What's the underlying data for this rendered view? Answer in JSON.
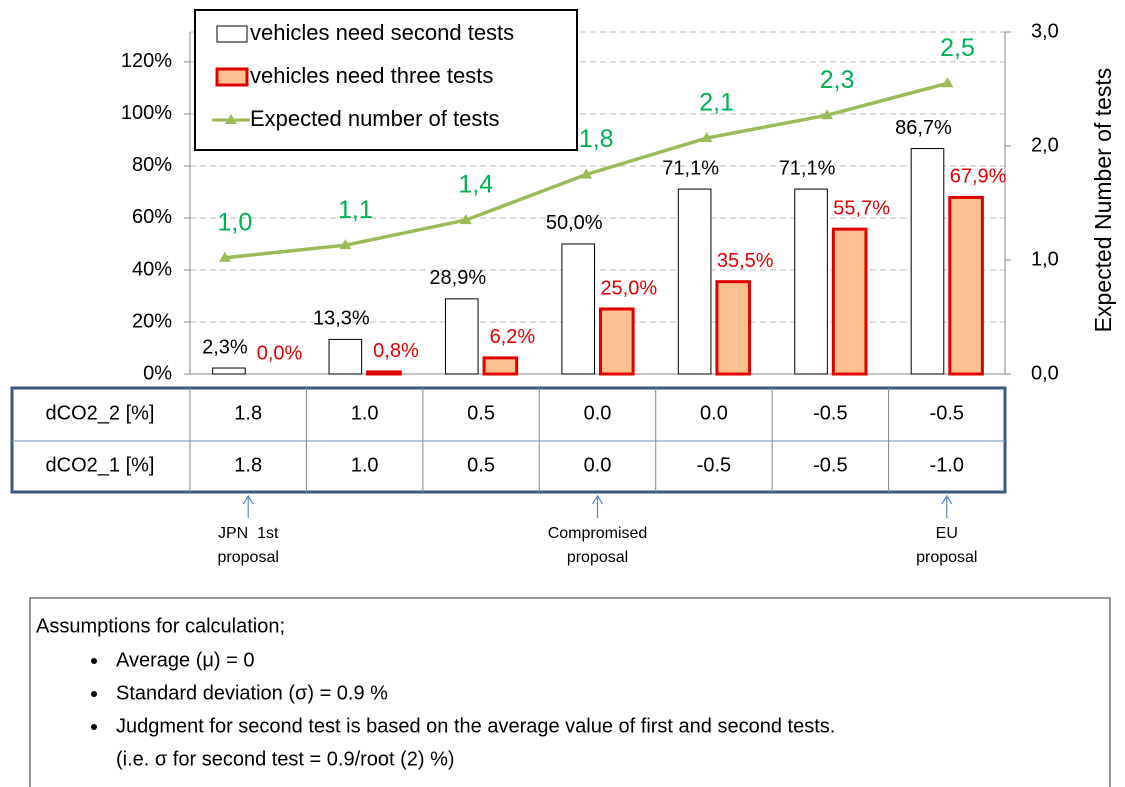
{
  "chart_data": {
    "type": "bar",
    "y_axis_label": "Expected Number of tests",
    "categories": [
      null,
      null,
      null,
      null,
      null,
      null,
      null
    ],
    "ylim": [
      0,
      131.5
    ],
    "yticks": [
      {
        "value": 0,
        "label": "0%"
      },
      {
        "value": 20,
        "label": "20%"
      },
      {
        "value": 40,
        "label": "40%"
      },
      {
        "value": 60,
        "label": "60%"
      },
      {
        "value": 80,
        "label": "80%"
      },
      {
        "value": 100,
        "label": "100%"
      },
      {
        "value": 120,
        "label": "120%"
      }
    ],
    "y2lim": [
      0,
      3
    ],
    "y2ticks": [
      {
        "value": 0,
        "label": "0,0"
      },
      {
        "value": 1,
        "label": "1,0"
      },
      {
        "value": 2,
        "label": "2,0"
      },
      {
        "value": 3,
        "label": "3,0"
      }
    ],
    "grid": true,
    "series": [
      {
        "name": "vehicles need second tests",
        "type": "bar",
        "color": "#ffffff",
        "edge": "#000000",
        "label_color": "#000000",
        "values": [
          2.3,
          13.3,
          28.9,
          50.0,
          71.1,
          71.1,
          86.7
        ],
        "value_labels": [
          "2,3%",
          "13,3%",
          "28,9%",
          "50,0%",
          "71,1%",
          "71,1%",
          "86,7%"
        ]
      },
      {
        "name": "vehicles need three tests",
        "type": "bar",
        "color": "#fac090",
        "edge": "#e00000",
        "label_color": "#e00000",
        "values": [
          0.0,
          0.8,
          6.2,
          25.0,
          35.5,
          55.7,
          67.9
        ],
        "value_labels": [
          "0,0%",
          "0,8%",
          "6,2%",
          "25,0%",
          "35,5%",
          "55,7%",
          "67,9%"
        ]
      },
      {
        "name": "Expected number of tests",
        "type": "line",
        "axis": "y2",
        "color": "#9bbb59",
        "label_color": "#00b050",
        "values": [
          1.02,
          1.13,
          1.35,
          1.75,
          2.07,
          2.27,
          2.55
        ],
        "value_labels": [
          "1,0",
          "1,1",
          "1,4",
          "1,8",
          "2,1",
          "2,3",
          "2,5"
        ]
      }
    ]
  },
  "table": {
    "rows": [
      [
        "dCO2_2 [%]",
        "1.8",
        "1.0",
        "0.5",
        "0.0",
        "0.0",
        "-0.5",
        "-0.5"
      ],
      [
        "dCO2_1 [%]",
        "1.8",
        "1.0",
        "0.5",
        "0.0",
        "-0.5",
        "-0.5",
        "-1.0"
      ]
    ]
  },
  "annotations": [
    {
      "column": 0,
      "lines": [
        "JPN  1st",
        "proposal"
      ]
    },
    {
      "column": 3,
      "lines": [
        "Compromised",
        "proposal"
      ]
    },
    {
      "column": 6,
      "lines": [
        "EU",
        "proposal"
      ]
    }
  ],
  "notes": {
    "heading": "Assumptions for calculation;",
    "items": [
      "Average (μ) = 0",
      "Standard deviation (σ) = 0.9 %",
      "Judgment for second test is based on the average value of first and second tests."
    ],
    "continuation": "(i.e. σ for second test = 0.9/root (2) %)"
  }
}
